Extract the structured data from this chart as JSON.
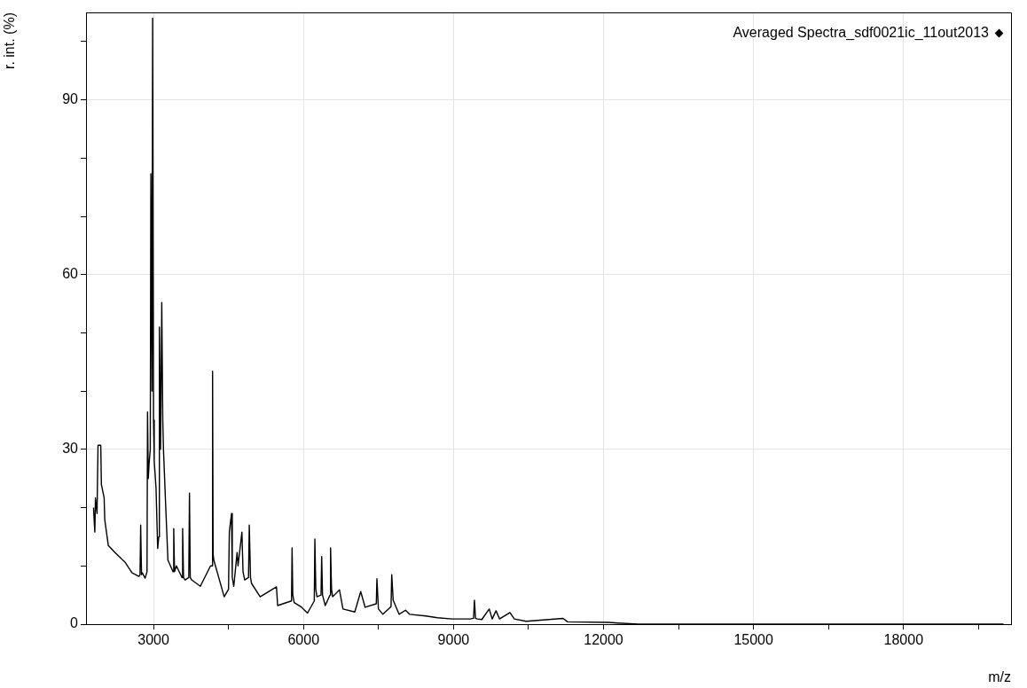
{
  "chart_data": {
    "type": "line",
    "xlabel": "m/z",
    "ylabel": "r. int. (%)",
    "legend": "top right",
    "grid": true,
    "line_style": "solid",
    "xlim": [
      1650,
      20150
    ],
    "ylim": [
      0,
      105
    ],
    "xticks": [
      3000,
      {
        "value": 4500,
        "label": null
      },
      6000,
      {
        "value": 7500,
        "label": null
      },
      9000,
      {
        "value": 10500,
        "label": null
      },
      12000,
      {
        "value": 13500,
        "label": null
      },
      15000,
      {
        "value": 16500,
        "label": null
      },
      18000,
      {
        "value": 19500,
        "label": null
      }
    ],
    "yticks": [
      0,
      {
        "value": 10,
        "label": null
      },
      {
        "value": 20,
        "label": null
      },
      30,
      {
        "value": 40,
        "label": null
      },
      {
        "value": 50,
        "label": null
      },
      60,
      {
        "value": 70,
        "label": null
      },
      {
        "value": 80,
        "label": null
      },
      90,
      {
        "value": 100,
        "label": null
      }
    ],
    "series": [
      {
        "name": "Averaged Spectra_sdf0021ic_11out2013",
        "color": "#000000",
        "x": [
          1800,
          1826,
          1838,
          1870,
          1890,
          1945,
          1957,
          2012,
          2025,
          2096,
          2230,
          2433,
          2571,
          2708,
          2730,
          2743,
          2760,
          2777,
          2832,
          2870,
          2880,
          2895,
          2911,
          2935,
          2947,
          2970,
          2982,
          3000,
          3014,
          3050,
          3083,
          3105,
          3117,
          3140,
          3165,
          3185,
          3199,
          3240,
          3288,
          3390,
          3404,
          3420,
          3458,
          3570,
          3582,
          3600,
          3630,
          3705,
          3719,
          3735,
          3762,
          3936,
          4140,
          4170,
          4181,
          4192,
          4206,
          4413,
          4500,
          4516,
          4560,
          4575,
          4605,
          4672,
          4690,
          4768,
          4790,
          4823,
          4900,
          4915,
          4940,
          4960,
          5133,
          5459,
          5482,
          5760,
          5771,
          5785,
          5813,
          5961,
          6080,
          6215,
          6227,
          6245,
          6269,
          6350,
          6363,
          6380,
          6434,
          6530,
          6541,
          6560,
          6582,
          6718,
          6789,
          7025,
          7144,
          7232,
          7455,
          7468,
          7498,
          7587,
          7750,
          7764,
          7793,
          7911,
          8041,
          8119,
          8443,
          8679,
          8975,
          9152,
          9330,
          9400,
          9418,
          9440,
          9477,
          9565,
          9714,
          9773,
          9850,
          9920,
          10128,
          10216,
          10452,
          11191,
          11280,
          12108,
          12285,
          12700,
          20000
        ],
        "values": [
          20,
          15.8,
          21.7,
          19,
          30.7,
          30.7,
          24,
          21.7,
          17.9,
          13.5,
          12.3,
          10.6,
          8.8,
          8.2,
          8.5,
          17,
          8.5,
          8.8,
          7.9,
          9,
          36.4,
          25,
          27.5,
          30,
          77.3,
          40,
          104,
          35,
          28,
          23.4,
          13,
          15,
          51,
          30,
          55.2,
          35,
          30,
          21,
          11,
          9,
          16.4,
          9,
          10,
          8,
          16.4,
          8,
          7.6,
          8,
          22.5,
          8,
          7.6,
          6.5,
          10,
          10,
          43.4,
          12,
          11,
          4.7,
          6,
          15.8,
          19,
          8,
          6.5,
          12.3,
          10,
          15.8,
          9,
          7.6,
          8,
          17,
          8,
          7,
          4.7,
          6.4,
          3.2,
          4,
          13.1,
          5,
          3.7,
          2.9,
          1.9,
          4,
          14.6,
          6,
          4.7,
          5,
          11.6,
          5,
          3.2,
          5,
          13.1,
          6,
          4.7,
          5.9,
          2.6,
          2.1,
          5.6,
          2.9,
          3.5,
          7.8,
          2.6,
          1.7,
          3,
          8.5,
          4.1,
          1.7,
          2.4,
          1.7,
          1.4,
          1.1,
          0.9,
          0.9,
          0.9,
          1,
          4.1,
          1,
          0.9,
          0.8,
          2.6,
          0.9,
          2.3,
          0.9,
          2,
          0.9,
          0.5,
          1,
          0.4,
          0.3,
          0.2,
          0,
          0
        ]
      }
    ]
  }
}
